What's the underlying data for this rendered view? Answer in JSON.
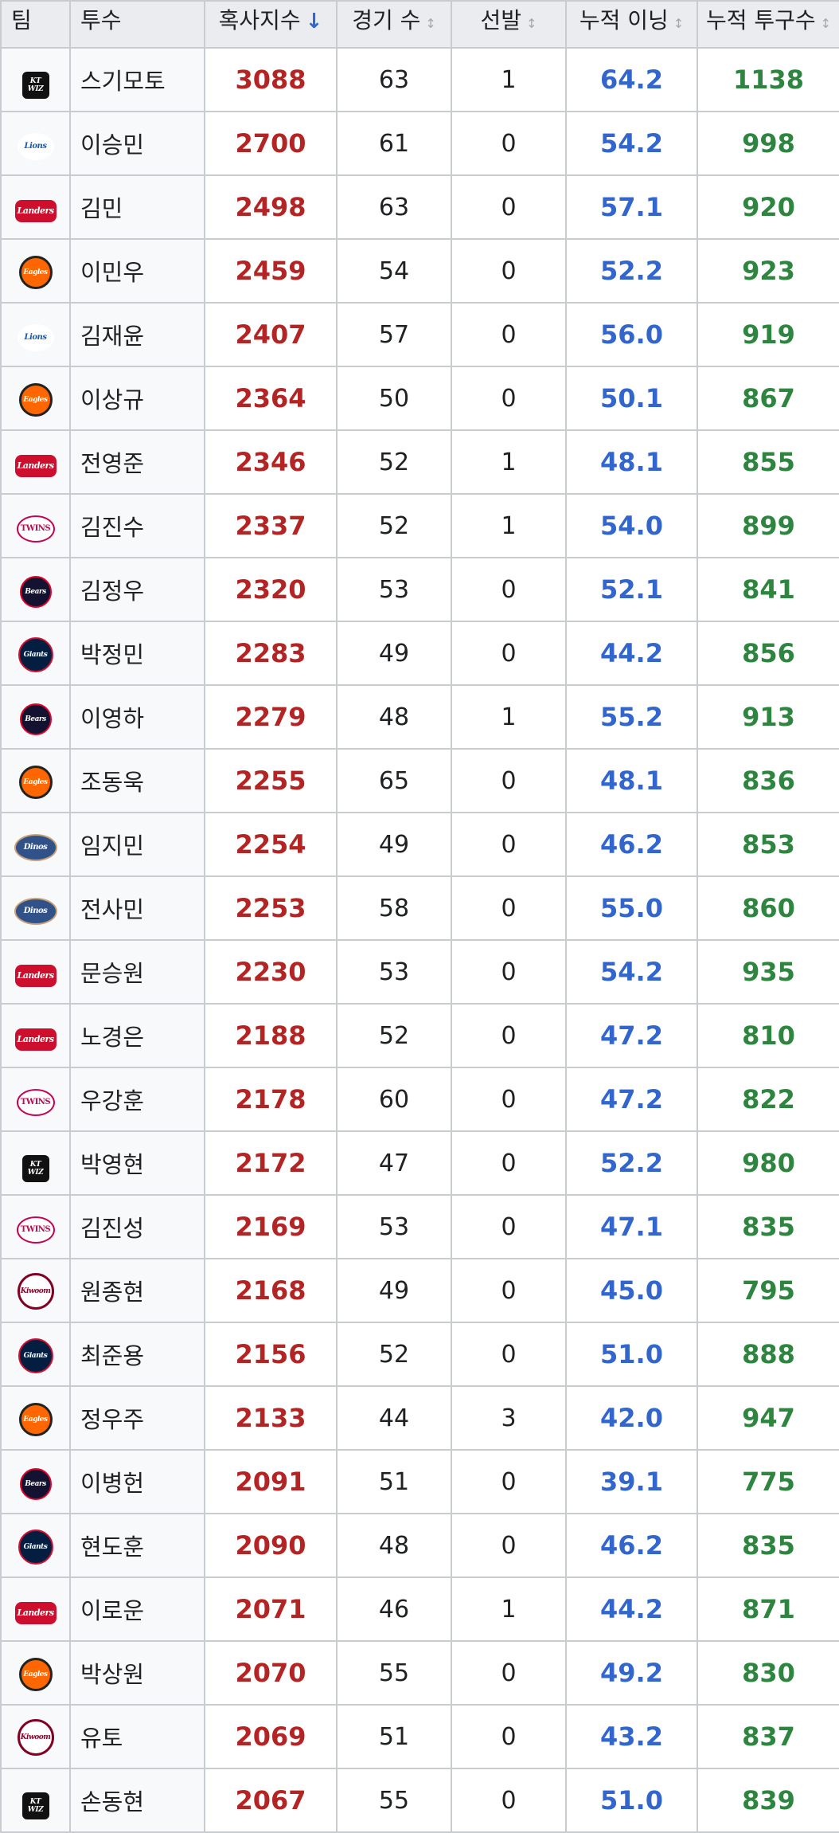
{
  "columns": [
    {
      "label": "팀",
      "sort": ""
    },
    {
      "label": "투수",
      "sort": ""
    },
    {
      "label": "혹사지수",
      "sort": "↓"
    },
    {
      "label": "경기 수",
      "sort": "↕"
    },
    {
      "label": "선발",
      "sort": "↕"
    },
    {
      "label": "누적 이닝",
      "sort": "↕"
    },
    {
      "label": "누적 투구수",
      "sort": "↕"
    }
  ],
  "logo_text": {
    "kt": "KT WIZ",
    "lions": "Lions",
    "landers": "Landers",
    "eagles": "Eagles",
    "twins": "TWINS",
    "bears": "Bears",
    "giants": "Giants",
    "dinos": "Dinos",
    "kiwoom": "Kiwoom"
  },
  "colors": {
    "torture": "#b32424",
    "innings": "#3366cc",
    "pitches": "#2e8540",
    "header_bg": "#eaecf0",
    "border": "#c8ccd1"
  },
  "rows": [
    {
      "team": "kt",
      "name": "스기모토",
      "torture": "3088",
      "games": "63",
      "starts": "1",
      "innings": "64.2",
      "pitches": "1138"
    },
    {
      "team": "lions",
      "name": "이승민",
      "torture": "2700",
      "games": "61",
      "starts": "0",
      "innings": "54.2",
      "pitches": "998"
    },
    {
      "team": "landers",
      "name": "김민",
      "torture": "2498",
      "games": "63",
      "starts": "0",
      "innings": "57.1",
      "pitches": "920"
    },
    {
      "team": "eagles",
      "name": "이민우",
      "torture": "2459",
      "games": "54",
      "starts": "0",
      "innings": "52.2",
      "pitches": "923"
    },
    {
      "team": "lions",
      "name": "김재윤",
      "torture": "2407",
      "games": "57",
      "starts": "0",
      "innings": "56.0",
      "pitches": "919"
    },
    {
      "team": "eagles",
      "name": "이상규",
      "torture": "2364",
      "games": "50",
      "starts": "0",
      "innings": "50.1",
      "pitches": "867"
    },
    {
      "team": "landers",
      "name": "전영준",
      "torture": "2346",
      "games": "52",
      "starts": "1",
      "innings": "48.1",
      "pitches": "855"
    },
    {
      "team": "twins",
      "name": "김진수",
      "torture": "2337",
      "games": "52",
      "starts": "1",
      "innings": "54.0",
      "pitches": "899"
    },
    {
      "team": "bears",
      "name": "김정우",
      "torture": "2320",
      "games": "53",
      "starts": "0",
      "innings": "52.1",
      "pitches": "841"
    },
    {
      "team": "giants",
      "name": "박정민",
      "torture": "2283",
      "games": "49",
      "starts": "0",
      "innings": "44.2",
      "pitches": "856"
    },
    {
      "team": "bears",
      "name": "이영하",
      "torture": "2279",
      "games": "48",
      "starts": "1",
      "innings": "55.2",
      "pitches": "913"
    },
    {
      "team": "eagles",
      "name": "조동욱",
      "torture": "2255",
      "games": "65",
      "starts": "0",
      "innings": "48.1",
      "pitches": "836"
    },
    {
      "team": "dinos",
      "name": "임지민",
      "torture": "2254",
      "games": "49",
      "starts": "0",
      "innings": "46.2",
      "pitches": "853"
    },
    {
      "team": "dinos",
      "name": "전사민",
      "torture": "2253",
      "games": "58",
      "starts": "0",
      "innings": "55.0",
      "pitches": "860"
    },
    {
      "team": "landers",
      "name": "문승원",
      "torture": "2230",
      "games": "53",
      "starts": "0",
      "innings": "54.2",
      "pitches": "935"
    },
    {
      "team": "landers",
      "name": "노경은",
      "torture": "2188",
      "games": "52",
      "starts": "0",
      "innings": "47.2",
      "pitches": "810"
    },
    {
      "team": "twins",
      "name": "우강훈",
      "torture": "2178",
      "games": "60",
      "starts": "0",
      "innings": "47.2",
      "pitches": "822"
    },
    {
      "team": "kt",
      "name": "박영현",
      "torture": "2172",
      "games": "47",
      "starts": "0",
      "innings": "52.2",
      "pitches": "980"
    },
    {
      "team": "twins",
      "name": "김진성",
      "torture": "2169",
      "games": "53",
      "starts": "0",
      "innings": "47.1",
      "pitches": "835"
    },
    {
      "team": "kiwoom",
      "name": "원종현",
      "torture": "2168",
      "games": "49",
      "starts": "0",
      "innings": "45.0",
      "pitches": "795"
    },
    {
      "team": "giants",
      "name": "최준용",
      "torture": "2156",
      "games": "52",
      "starts": "0",
      "innings": "51.0",
      "pitches": "888"
    },
    {
      "team": "eagles",
      "name": "정우주",
      "torture": "2133",
      "games": "44",
      "starts": "3",
      "innings": "42.0",
      "pitches": "947"
    },
    {
      "team": "bears",
      "name": "이병헌",
      "torture": "2091",
      "games": "51",
      "starts": "0",
      "innings": "39.1",
      "pitches": "775"
    },
    {
      "team": "giants",
      "name": "현도훈",
      "torture": "2090",
      "games": "48",
      "starts": "0",
      "innings": "46.2",
      "pitches": "835"
    },
    {
      "team": "landers",
      "name": "이로운",
      "torture": "2071",
      "games": "46",
      "starts": "1",
      "innings": "44.2",
      "pitches": "871"
    },
    {
      "team": "eagles",
      "name": "박상원",
      "torture": "2070",
      "games": "55",
      "starts": "0",
      "innings": "49.2",
      "pitches": "830"
    },
    {
      "team": "kiwoom",
      "name": "유토",
      "torture": "2069",
      "games": "51",
      "starts": "0",
      "innings": "43.2",
      "pitches": "837"
    },
    {
      "team": "kt",
      "name": "손동현",
      "torture": "2067",
      "games": "55",
      "starts": "0",
      "innings": "51.0",
      "pitches": "839"
    }
  ]
}
